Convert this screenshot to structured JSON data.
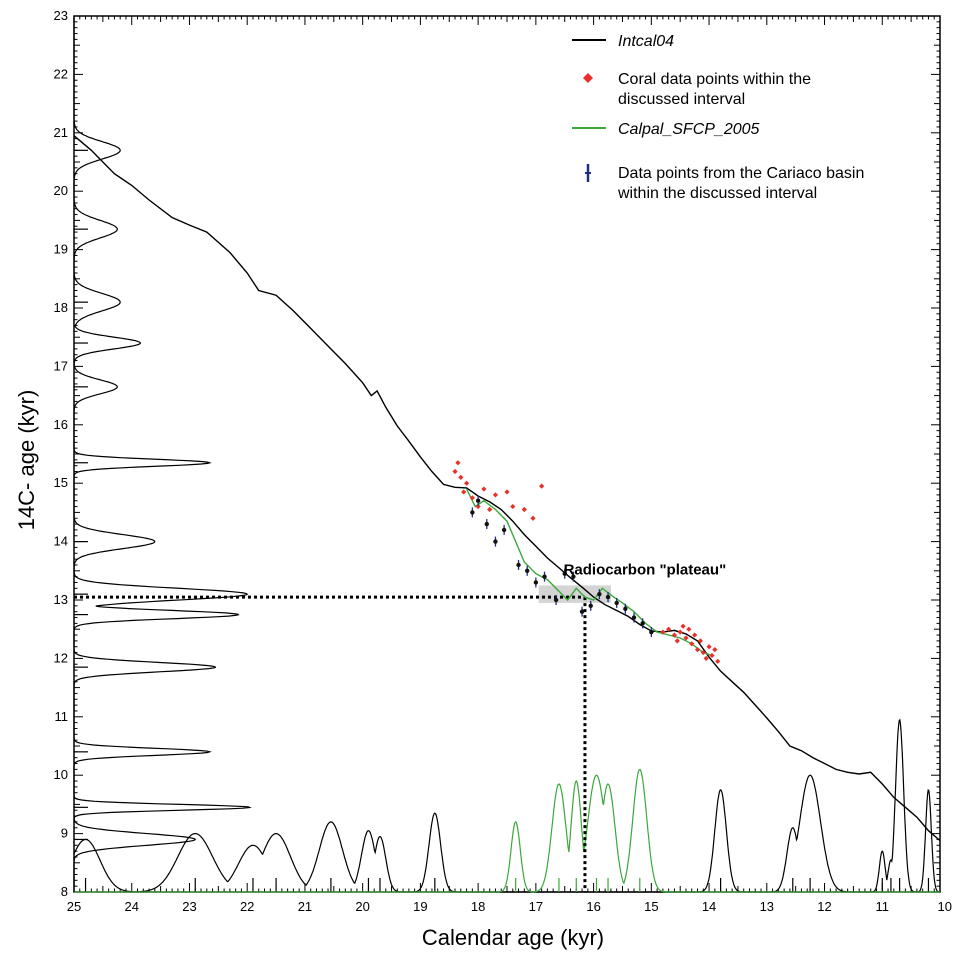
{
  "chart_data": {
    "type": "line",
    "xlabel": "Calendar age (kyr)",
    "ylabel": "14C- age (kyr)",
    "xlim": [
      25,
      10
    ],
    "ylim": [
      8,
      23
    ],
    "x_reversed": true,
    "x_ticks": [
      "25",
      "24",
      "23",
      "22",
      "21",
      "20",
      "19",
      "18",
      "17",
      "16",
      "15",
      "14",
      "13",
      "12",
      "11",
      "10"
    ],
    "y_ticks": [
      "8",
      "9",
      "10",
      "11",
      "12",
      "13",
      "14",
      "15",
      "16",
      "17",
      "18",
      "19",
      "20",
      "21",
      "22",
      "23"
    ],
    "grid": false,
    "legend_position": "top-right",
    "legend": [
      {
        "label": "Intcal04",
        "symbol": "line",
        "color": "#000000",
        "italic": true
      },
      {
        "label": "Coral data points within the",
        "label2": "discussed interval",
        "symbol": "diamond",
        "color": "#e8302a",
        "italic": false
      },
      {
        "label": "Calpal_SFCP_2005",
        "symbol": "line",
        "color": "#3aa83a",
        "italic": true
      },
      {
        "label": "Data points from the Cariaco basin",
        "label2": "within the discussed interval",
        "symbol": "errorbar",
        "color": "#1f2f80",
        "italic": false
      }
    ],
    "annotations": [
      {
        "text": "Radiocarbon \"plateau\"",
        "x": 16.0,
        "y": 13.3
      }
    ],
    "plateau_box": {
      "x0": 16.95,
      "x1": 15.7,
      "y0": 12.95,
      "y1": 13.25,
      "color": "#d4d4d4"
    },
    "dotted_guides": {
      "y": 13.05,
      "x": 16.15
    },
    "series": [
      {
        "name": "Intcal04",
        "color": "#000000",
        "points": [
          [
            25.0,
            20.95
          ],
          [
            24.7,
            20.7
          ],
          [
            24.3,
            20.3
          ],
          [
            24.0,
            20.1
          ],
          [
            23.7,
            19.85
          ],
          [
            23.3,
            19.55
          ],
          [
            23.0,
            19.42
          ],
          [
            22.7,
            19.3
          ],
          [
            22.3,
            18.95
          ],
          [
            22.0,
            18.6
          ],
          [
            21.8,
            18.3
          ],
          [
            21.5,
            18.22
          ],
          [
            21.2,
            17.95
          ],
          [
            20.9,
            17.65
          ],
          [
            20.6,
            17.35
          ],
          [
            20.3,
            17.05
          ],
          [
            20.0,
            16.72
          ],
          [
            19.85,
            16.5
          ],
          [
            19.75,
            16.58
          ],
          [
            19.6,
            16.3
          ],
          [
            19.4,
            15.98
          ],
          [
            19.2,
            15.72
          ],
          [
            19.0,
            15.45
          ],
          [
            18.8,
            15.2
          ],
          [
            18.6,
            14.98
          ],
          [
            18.4,
            14.93
          ],
          [
            18.2,
            14.92
          ],
          [
            18.0,
            14.78
          ],
          [
            17.8,
            14.68
          ],
          [
            17.6,
            14.55
          ],
          [
            17.4,
            14.35
          ],
          [
            17.2,
            14.12
          ],
          [
            17.0,
            13.92
          ],
          [
            16.8,
            13.72
          ],
          [
            16.6,
            13.55
          ],
          [
            16.4,
            13.38
          ],
          [
            16.2,
            13.22
          ],
          [
            16.0,
            13.05
          ],
          [
            15.8,
            12.92
          ],
          [
            15.6,
            12.82
          ],
          [
            15.4,
            12.72
          ],
          [
            15.2,
            12.58
          ],
          [
            15.0,
            12.47
          ],
          [
            14.8,
            12.45
          ],
          [
            14.6,
            12.48
          ],
          [
            14.4,
            12.42
          ],
          [
            14.2,
            12.3
          ],
          [
            14.0,
            12.02
          ],
          [
            13.8,
            11.78
          ],
          [
            13.6,
            11.6
          ],
          [
            13.4,
            11.42
          ],
          [
            13.2,
            11.2
          ],
          [
            13.0,
            10.98
          ],
          [
            12.8,
            10.75
          ],
          [
            12.6,
            10.5
          ],
          [
            12.4,
            10.42
          ],
          [
            12.2,
            10.3
          ],
          [
            12.0,
            10.2
          ],
          [
            11.8,
            10.1
          ],
          [
            11.6,
            10.05
          ],
          [
            11.4,
            10.02
          ],
          [
            11.2,
            10.05
          ],
          [
            11.0,
            9.85
          ],
          [
            10.8,
            9.62
          ],
          [
            10.6,
            9.45
          ],
          [
            10.4,
            9.28
          ],
          [
            10.2,
            9.05
          ],
          [
            10.0,
            8.88
          ]
        ]
      },
      {
        "name": "Calpal_SFCP_2005",
        "color": "#3aa83a",
        "points": [
          [
            18.2,
            14.9
          ],
          [
            18.05,
            14.6
          ],
          [
            17.9,
            14.7
          ],
          [
            17.7,
            14.55
          ],
          [
            17.5,
            14.35
          ],
          [
            17.35,
            14.0
          ],
          [
            17.2,
            13.65
          ],
          [
            17.0,
            13.45
          ],
          [
            16.8,
            13.35
          ],
          [
            16.6,
            13.15
          ],
          [
            16.45,
            13.0
          ],
          [
            16.3,
            13.2
          ],
          [
            16.15,
            13.05
          ],
          [
            16.0,
            13.0
          ],
          [
            15.85,
            13.2
          ],
          [
            15.65,
            13.05
          ],
          [
            15.5,
            12.95
          ],
          [
            15.3,
            12.8
          ],
          [
            15.1,
            12.6
          ],
          [
            14.9,
            12.45
          ],
          [
            14.7,
            12.4
          ],
          [
            14.5,
            12.35
          ],
          [
            14.3,
            12.25
          ],
          [
            14.1,
            12.1
          ],
          [
            13.95,
            12.05
          ]
        ]
      }
    ],
    "coral_points": [
      [
        18.4,
        15.2
      ],
      [
        18.35,
        15.35
      ],
      [
        18.3,
        15.1
      ],
      [
        18.25,
        14.85
      ],
      [
        18.2,
        15.0
      ],
      [
        18.1,
        14.75
      ],
      [
        18.0,
        14.6
      ],
      [
        17.9,
        14.9
      ],
      [
        17.8,
        14.55
      ],
      [
        17.7,
        14.8
      ],
      [
        17.5,
        14.85
      ],
      [
        17.4,
        14.6
      ],
      [
        17.2,
        14.55
      ],
      [
        17.05,
        14.4
      ],
      [
        16.9,
        14.95
      ],
      [
        14.8,
        12.45
      ],
      [
        14.7,
        12.5
      ],
      [
        14.6,
        12.4
      ],
      [
        14.55,
        12.3
      ],
      [
        14.5,
        12.45
      ],
      [
        14.45,
        12.55
      ],
      [
        14.4,
        12.35
      ],
      [
        14.35,
        12.5
      ],
      [
        14.3,
        12.25
      ],
      [
        14.25,
        12.4
      ],
      [
        14.2,
        12.15
      ],
      [
        14.15,
        12.3
      ],
      [
        14.1,
        12.1
      ],
      [
        14.05,
        12.0
      ],
      [
        14.0,
        12.2
      ],
      [
        13.95,
        12.05
      ],
      [
        13.9,
        12.15
      ],
      [
        13.85,
        11.95
      ]
    ],
    "cariaco_points": [
      [
        18.1,
        14.5
      ],
      [
        18.0,
        14.7
      ],
      [
        17.85,
        14.3
      ],
      [
        17.7,
        14.0
      ],
      [
        17.55,
        14.2
      ],
      [
        17.3,
        13.6
      ],
      [
        17.15,
        13.5
      ],
      [
        17.0,
        13.3
      ],
      [
        16.85,
        13.4
      ],
      [
        16.65,
        13.0
      ],
      [
        16.5,
        13.45
      ],
      [
        16.35,
        13.4
      ],
      [
        16.2,
        12.8
      ],
      [
        16.05,
        12.9
      ],
      [
        15.9,
        13.1
      ],
      [
        15.75,
        13.05
      ],
      [
        15.6,
        12.95
      ],
      [
        15.45,
        12.85
      ],
      [
        15.3,
        12.7
      ],
      [
        15.15,
        12.6
      ],
      [
        15.0,
        12.45
      ]
    ],
    "bottom_distributions": [
      {
        "color": "#000000",
        "peaks": [
          [
            24.8,
            0.9,
            0.25
          ],
          [
            22.9,
            1.0,
            0.3
          ],
          [
            21.9,
            0.8,
            0.25
          ],
          [
            21.5,
            1.0,
            0.25
          ],
          [
            20.55,
            1.2,
            0.2
          ],
          [
            19.9,
            1.05,
            0.12
          ],
          [
            19.7,
            0.95,
            0.1
          ],
          [
            18.75,
            1.35,
            0.1
          ],
          [
            13.8,
            1.75,
            0.1
          ],
          [
            12.55,
            1.1,
            0.1
          ],
          [
            12.25,
            2.0,
            0.18
          ],
          [
            11.0,
            0.7,
            0.05
          ],
          [
            10.85,
            0.55,
            0.05
          ],
          [
            10.7,
            2.95,
            0.07
          ],
          [
            10.2,
            1.75,
            0.05
          ]
        ]
      },
      {
        "color": "#3aa83a",
        "peaks": [
          [
            17.35,
            1.2,
            0.08
          ],
          [
            16.6,
            1.85,
            0.12
          ],
          [
            16.3,
            1.9,
            0.09
          ],
          [
            15.95,
            2.0,
            0.15
          ],
          [
            15.75,
            1.85,
            0.12
          ],
          [
            15.2,
            2.1,
            0.12
          ]
        ]
      }
    ],
    "left_distributions": [
      {
        "color": "#000000",
        "peaks": [
          [
            20.7,
            0.8,
            0.15
          ],
          [
            19.35,
            0.75,
            0.15
          ],
          [
            18.1,
            0.8,
            0.15
          ],
          [
            17.4,
            1.15,
            0.1
          ],
          [
            16.65,
            0.75,
            0.12
          ],
          [
            15.35,
            2.35,
            0.06
          ],
          [
            14.0,
            1.4,
            0.12
          ],
          [
            13.1,
            3.0,
            0.1
          ],
          [
            12.75,
            2.85,
            0.07
          ],
          [
            11.85,
            2.45,
            0.08
          ],
          [
            10.4,
            2.35,
            0.06
          ],
          [
            9.45,
            3.05,
            0.05
          ],
          [
            8.9,
            2.1,
            0.1
          ]
        ]
      }
    ]
  }
}
